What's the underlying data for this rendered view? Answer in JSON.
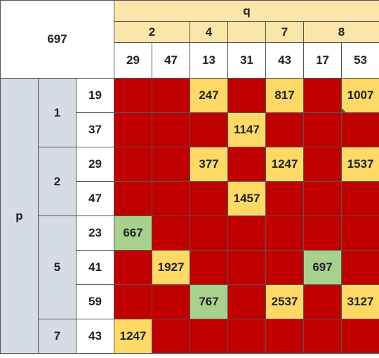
{
  "corner_label": "697",
  "q_label": "q",
  "p_label": "p",
  "q_groups": [
    {
      "label": "2",
      "span": 2
    },
    {
      "label": "4",
      "span": 1
    },
    {
      "label": "",
      "span": 1
    },
    {
      "label": "7",
      "span": 1
    },
    {
      "label": "8",
      "span": 2
    }
  ],
  "q_values": [
    "29",
    "47",
    "13",
    "31",
    "43",
    "17",
    "53"
  ],
  "p_groups": [
    {
      "label": "1",
      "rows": [
        {
          "p": "19",
          "cells": [
            {
              "v": "",
              "c": "red"
            },
            {
              "v": "",
              "c": "red"
            },
            {
              "v": "247",
              "c": "yellow"
            },
            {
              "v": "",
              "c": "red"
            },
            {
              "v": "817",
              "c": "yellow"
            },
            {
              "v": "",
              "c": "red"
            },
            {
              "v": "1007",
              "c": "yellow",
              "mark": true
            }
          ]
        },
        {
          "p": "37",
          "cells": [
            {
              "v": "",
              "c": "red"
            },
            {
              "v": "",
              "c": "red"
            },
            {
              "v": "",
              "c": "red"
            },
            {
              "v": "1147",
              "c": "yellow"
            },
            {
              "v": "",
              "c": "red"
            },
            {
              "v": "",
              "c": "red"
            },
            {
              "v": "",
              "c": "red"
            }
          ]
        }
      ]
    },
    {
      "label": "2",
      "rows": [
        {
          "p": "29",
          "cells": [
            {
              "v": "",
              "c": "red"
            },
            {
              "v": "",
              "c": "red"
            },
            {
              "v": "377",
              "c": "yellow"
            },
            {
              "v": "",
              "c": "red"
            },
            {
              "v": "1247",
              "c": "yellow"
            },
            {
              "v": "",
              "c": "red"
            },
            {
              "v": "1537",
              "c": "yellow"
            }
          ]
        },
        {
          "p": "47",
          "cells": [
            {
              "v": "",
              "c": "red"
            },
            {
              "v": "",
              "c": "red"
            },
            {
              "v": "",
              "c": "red"
            },
            {
              "v": "1457",
              "c": "yellow"
            },
            {
              "v": "",
              "c": "red"
            },
            {
              "v": "",
              "c": "red"
            },
            {
              "v": "",
              "c": "red"
            }
          ]
        }
      ]
    },
    {
      "label": "5",
      "rows": [
        {
          "p": "23",
          "cells": [
            {
              "v": "667",
              "c": "green"
            },
            {
              "v": "",
              "c": "red"
            },
            {
              "v": "",
              "c": "red"
            },
            {
              "v": "",
              "c": "red"
            },
            {
              "v": "",
              "c": "red"
            },
            {
              "v": "",
              "c": "red"
            },
            {
              "v": "",
              "c": "red"
            }
          ]
        },
        {
          "p": "41",
          "cells": [
            {
              "v": "",
              "c": "red"
            },
            {
              "v": "1927",
              "c": "yellow"
            },
            {
              "v": "",
              "c": "red"
            },
            {
              "v": "",
              "c": "red"
            },
            {
              "v": "",
              "c": "red"
            },
            {
              "v": "697",
              "c": "green"
            },
            {
              "v": "",
              "c": "red"
            }
          ]
        },
        {
          "p": "59",
          "cells": [
            {
              "v": "",
              "c": "red"
            },
            {
              "v": "",
              "c": "red"
            },
            {
              "v": "767",
              "c": "green"
            },
            {
              "v": "",
              "c": "red"
            },
            {
              "v": "2537",
              "c": "yellow"
            },
            {
              "v": "",
              "c": "red"
            },
            {
              "v": "3127",
              "c": "yellow"
            }
          ]
        }
      ]
    },
    {
      "label": "7",
      "rows": [
        {
          "p": "43",
          "cells": [
            {
              "v": "1247",
              "c": "yellow"
            },
            {
              "v": "",
              "c": "red"
            },
            {
              "v": "",
              "c": "red"
            },
            {
              "v": "",
              "c": "red"
            },
            {
              "v": "",
              "c": "red"
            },
            {
              "v": "",
              "c": "red"
            },
            {
              "v": "",
              "c": "red"
            }
          ]
        }
      ]
    }
  ],
  "colors": {
    "red": "#c00000",
    "yellow": "#ffd966",
    "green": "#a9d18e",
    "q_header": "#fbe5a9",
    "p_header": "#d6dce4"
  }
}
